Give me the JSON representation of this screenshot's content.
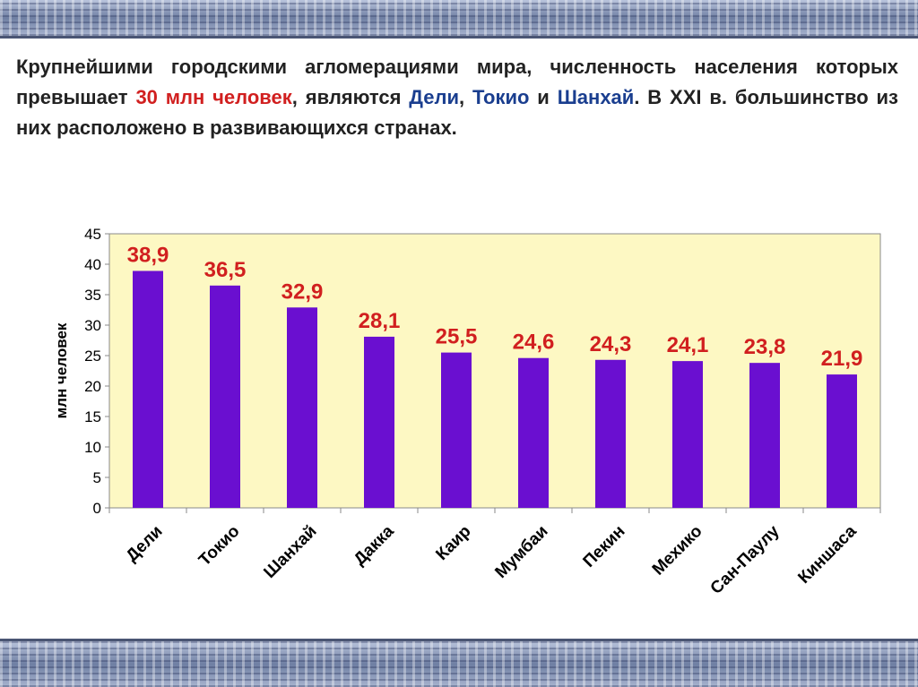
{
  "intro": {
    "part1": "Крупнейшими городскими агломерациями мира, численность населения которых превышает ",
    "highlight_red": "30 млн человек",
    "part2": ", являются ",
    "city1": "Дели",
    "sep1": ", ",
    "city2": "Токио",
    "sep2": " и ",
    "city3": "Шанхай",
    "part3": ". В XXI в. большинство из них расположено в развивающихся странах."
  },
  "colors": {
    "bar": "#6a0fd0",
    "plot_background": "#fdf8c3",
    "data_label": "#d11f1f",
    "highlight_blue": "#1a3e8f"
  },
  "chart_data": {
    "type": "bar",
    "categories": [
      "Дели",
      "Токио",
      "Шанхай",
      "Дакка",
      "Каир",
      "Мумбаи",
      "Пекин",
      "Мехико",
      "Сан-Паулу",
      "Киншаса"
    ],
    "values": [
      38.9,
      36.5,
      32.9,
      28.1,
      25.5,
      24.6,
      24.3,
      24.1,
      23.8,
      21.9
    ],
    "data_labels": [
      "38,9",
      "36,5",
      "32,9",
      "28,1",
      "25,5",
      "24,6",
      "24,3",
      "24,1",
      "23,8",
      "21,9"
    ],
    "yticks": [
      0,
      5,
      10,
      15,
      20,
      25,
      30,
      35,
      40,
      45
    ],
    "ylim": [
      0,
      45
    ],
    "ylabel": "млн человек",
    "xlabel": "",
    "title": "",
    "grid": false,
    "legend": "none"
  }
}
